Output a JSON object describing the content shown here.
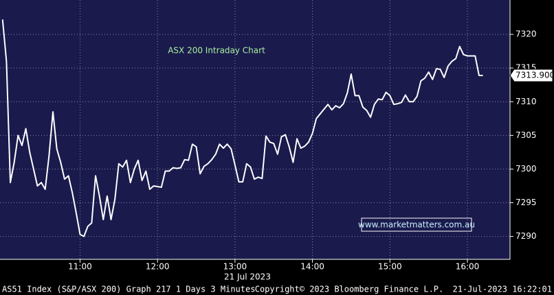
{
  "chart_data": {
    "type": "line",
    "title": "ASX 200 Intraday Chart",
    "watermark": "www.marketmatters.com.au",
    "date_label": "21 Jul 2023",
    "footer_left": "AS51 Index (S&P/ASX 200) Graph 217 1 Days 3 Minutes",
    "footer_center": "Copyright© 2023 Bloomberg Finance L.P.",
    "footer_right": "21-Jul-2023 16:22:01",
    "color": "#ffffff",
    "grid": true,
    "x": [
      600,
      603,
      606,
      609,
      612,
      615,
      618,
      621,
      624,
      627,
      630,
      633,
      636,
      639,
      642,
      645,
      648,
      651,
      654,
      657,
      660,
      663,
      666,
      669,
      672,
      675,
      678,
      681,
      684,
      687,
      690,
      693,
      696,
      699,
      702,
      705,
      708,
      711,
      714,
      717,
      720,
      723,
      726,
      729,
      732,
      735,
      738,
      741,
      744,
      747,
      750,
      753,
      756,
      759,
      762,
      765,
      768,
      771,
      774,
      777,
      780,
      783,
      786,
      789,
      792,
      795,
      798,
      801,
      804,
      807,
      810,
      813,
      816,
      819,
      822,
      825,
      828,
      831,
      834,
      837,
      840,
      843,
      846,
      849,
      852,
      855,
      858,
      861,
      864,
      867,
      870,
      873,
      876,
      879,
      882,
      885,
      888,
      891,
      894,
      897,
      900,
      903,
      906,
      909,
      912,
      915,
      918,
      921,
      924,
      927,
      930,
      933,
      936,
      939,
      942,
      945,
      948,
      951,
      954,
      957,
      960,
      963,
      966,
      969,
      972
    ],
    "values": [
      7322.2,
      7316,
      7298,
      7301,
      7305,
      7303.5,
      7306,
      7302.5,
      7300,
      7297.5,
      7298,
      7297,
      7302,
      7308.5,
      7303,
      7301,
      7298.5,
      7299,
      7296.5,
      7293.5,
      7290.3,
      7290,
      7291.5,
      7292,
      7299,
      7296,
      7292.5,
      7296,
      7292.5,
      7295.5,
      7300.8,
      7300.3,
      7301.3,
      7298,
      7300,
      7301.3,
      7298.3,
      7299.7,
      7297,
      7297.5,
      7297.4,
      7297.3,
      7299.7,
      7299.7,
      7300.2,
      7300.1,
      7300.2,
      7301.4,
      7301.3,
      7303.7,
      7303.3,
      7299.3,
      7300.4,
      7300.8,
      7301.4,
      7302.2,
      7303.7,
      7303.1,
      7303.7,
      7303,
      7300.6,
      7298.1,
      7298.1,
      7300.8,
      7300.3,
      7298.5,
      7298.8,
      7298.6,
      7304.9,
      7304,
      7303.8,
      7302.2,
      7304.8,
      7305.1,
      7303.3,
      7301,
      7304.5,
      7303.1,
      7303.4,
      7304,
      7305.3,
      7307.5,
      7308.2,
      7308.9,
      7309.6,
      7308.8,
      7309.4,
      7309.1,
      7309.7,
      7311.3,
      7314.1,
      7310.9,
      7310.9,
      7309.2,
      7308.7,
      7307.7,
      7309.6,
      7310.4,
      7310.3,
      7311.4,
      7310.9,
      7309.6,
      7309.7,
      7309.9,
      7311,
      7310,
      7310,
      7310.8,
      7313.1,
      7313.5,
      7314.4,
      7313.3,
      7314.9,
      7314.8,
      7313.6,
      7315.3,
      7316,
      7316.4,
      7318.2,
      7317,
      7316.8,
      7316.8,
      7316.8,
      7313.9,
      7313.9
    ],
    "last_value": {
      "value": 7313.9,
      "label": "7313.900"
    },
    "xlim": [
      598,
      993
    ],
    "xticks": [
      {
        "value": 660,
        "label": "11:00"
      },
      {
        "value": 720,
        "label": "12:00"
      },
      {
        "value": 780,
        "label": "13:00"
      },
      {
        "value": 840,
        "label": "14:00"
      },
      {
        "value": 900,
        "label": "15:00"
      },
      {
        "value": 960,
        "label": "16:00"
      }
    ],
    "ylim": [
      7286.6,
      7325.1
    ],
    "yticks": [
      7290,
      7295,
      7300,
      7305,
      7310,
      7315,
      7320
    ]
  }
}
